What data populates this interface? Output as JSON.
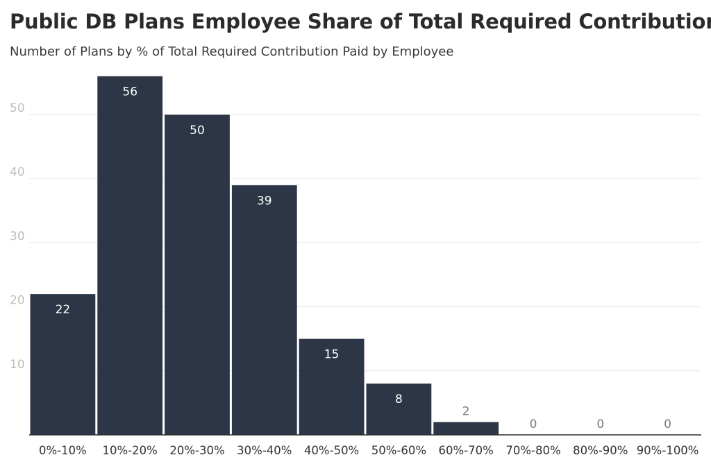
{
  "title": "Public DB Plans Employee Share of Total Required Contribution",
  "subtitle": "Number of Plans by % of Total Required Contribution Paid by Employee",
  "colors": {
    "bar": "#2d3646",
    "grid": "#e6e6e6",
    "axis": "#2b2b2b"
  },
  "chart_data": {
    "type": "bar",
    "title": "Public DB Plans Employee Share of Total Required Contribution",
    "subtitle": "Number of Plans by % of Total Required Contribution Paid by Employee",
    "xlabel": "",
    "ylabel": "",
    "categories": [
      "0%-10%",
      "10%-20%",
      "20%-30%",
      "30%-40%",
      "40%-50%",
      "50%-60%",
      "60%-70%",
      "70%-80%",
      "80%-90%",
      "90%-100%"
    ],
    "values": [
      22,
      56,
      50,
      39,
      15,
      8,
      2,
      0,
      0,
      0
    ],
    "data_labels": [
      "22",
      "56",
      "50",
      "39",
      "15",
      "8",
      "2",
      "0",
      "0",
      "0"
    ],
    "yticks": [
      10,
      20,
      30,
      40,
      50
    ],
    "ytick_labels": [
      "10",
      "20",
      "30",
      "40",
      "50"
    ],
    "ylim": [
      0,
      58
    ],
    "grid": true,
    "legend": "none"
  }
}
